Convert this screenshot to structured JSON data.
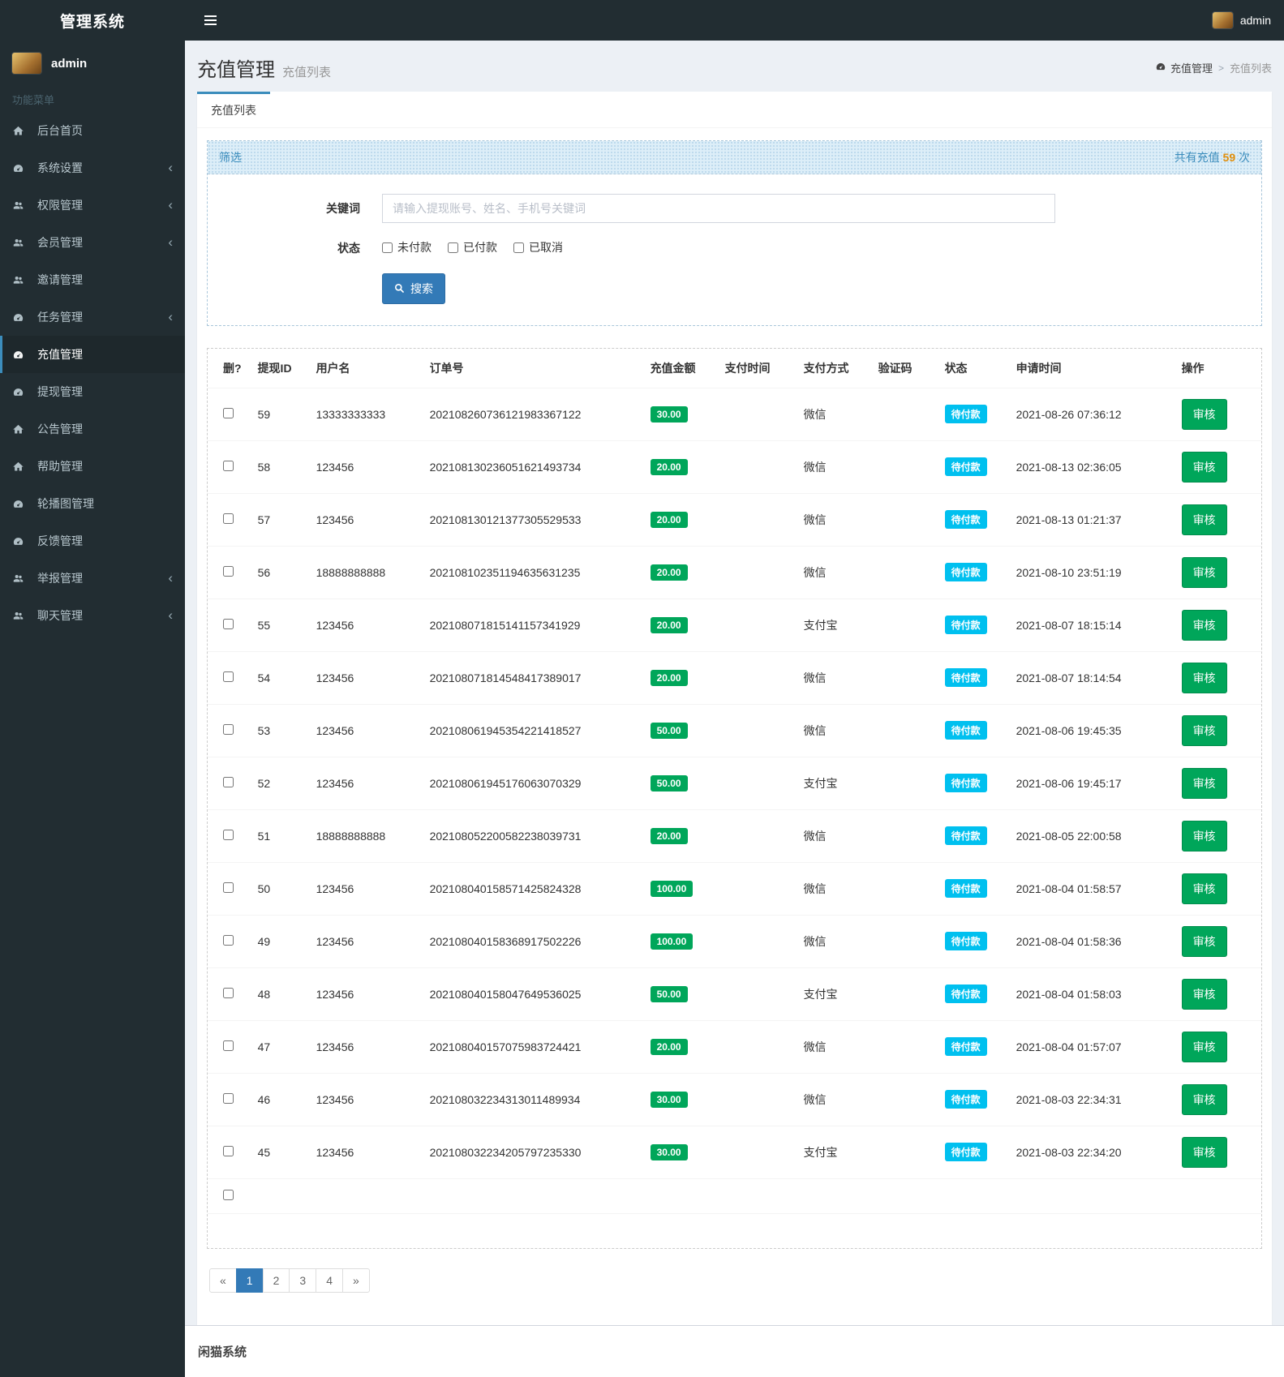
{
  "topbar": {
    "brand": "管理系统",
    "user": "admin"
  },
  "sidebar": {
    "user_name": "admin",
    "section_label": "功能菜单",
    "items": [
      {
        "label": "后台首页",
        "icon": "home",
        "expandable": false,
        "active": false
      },
      {
        "label": "系统设置",
        "icon": "dashboard",
        "expandable": true,
        "active": false
      },
      {
        "label": "权限管理",
        "icon": "users",
        "expandable": true,
        "active": false
      },
      {
        "label": "会员管理",
        "icon": "users",
        "expandable": true,
        "active": false
      },
      {
        "label": "邀请管理",
        "icon": "users",
        "expandable": false,
        "active": false
      },
      {
        "label": "任务管理",
        "icon": "dashboard",
        "expandable": true,
        "active": false
      },
      {
        "label": "充值管理",
        "icon": "dashboard",
        "expandable": false,
        "active": true
      },
      {
        "label": "提现管理",
        "icon": "dashboard",
        "expandable": false,
        "active": false
      },
      {
        "label": "公告管理",
        "icon": "home",
        "expandable": false,
        "active": false
      },
      {
        "label": "帮助管理",
        "icon": "home",
        "expandable": false,
        "active": false
      },
      {
        "label": "轮播图管理",
        "icon": "dashboard",
        "expandable": false,
        "active": false
      },
      {
        "label": "反馈管理",
        "icon": "dashboard",
        "expandable": false,
        "active": false
      },
      {
        "label": "举报管理",
        "icon": "users",
        "expandable": true,
        "active": false
      },
      {
        "label": "聊天管理",
        "icon": "users",
        "expandable": true,
        "active": false
      }
    ]
  },
  "page": {
    "title": "充值管理",
    "subtitle": "充值列表",
    "tab": "充值列表",
    "breadcrumb": {
      "root": "充值管理",
      "current": "充值列表"
    }
  },
  "filter": {
    "panel_title": "筛选",
    "total_prefix": "共有充值 ",
    "total_count": "59",
    "total_suffix": " 次",
    "keyword_label": "关键词",
    "keyword_placeholder": "请输入提现账号、姓名、手机号关键词",
    "keyword_value": "",
    "status_label": "状态",
    "status_options": [
      "未付款",
      "已付款",
      "已取消"
    ],
    "search_label": "搜索"
  },
  "table": {
    "columns": [
      "删?",
      "提现ID",
      "用户名",
      "订单号",
      "充值金额",
      "支付时间",
      "支付方式",
      "验证码",
      "状态",
      "申请时间",
      "操作"
    ],
    "action_label": "审核",
    "trailing_empty_row": true,
    "rows": [
      {
        "id": "59",
        "username": "13333333333",
        "order_no": "202108260736121983367122",
        "amount": "30.00",
        "pay_time": "",
        "pay_method": "微信",
        "verify_code": "",
        "status": "待付款",
        "apply_time": "2021-08-26 07:36:12"
      },
      {
        "id": "58",
        "username": "123456",
        "order_no": "202108130236051621493734",
        "amount": "20.00",
        "pay_time": "",
        "pay_method": "微信",
        "verify_code": "",
        "status": "待付款",
        "apply_time": "2021-08-13 02:36:05"
      },
      {
        "id": "57",
        "username": "123456",
        "order_no": "202108130121377305529533",
        "amount": "20.00",
        "pay_time": "",
        "pay_method": "微信",
        "verify_code": "",
        "status": "待付款",
        "apply_time": "2021-08-13 01:21:37"
      },
      {
        "id": "56",
        "username": "18888888888",
        "order_no": "202108102351194635631235",
        "amount": "20.00",
        "pay_time": "",
        "pay_method": "微信",
        "verify_code": "",
        "status": "待付款",
        "apply_time": "2021-08-10 23:51:19"
      },
      {
        "id": "55",
        "username": "123456",
        "order_no": "202108071815141157341929",
        "amount": "20.00",
        "pay_time": "",
        "pay_method": "支付宝",
        "verify_code": "",
        "status": "待付款",
        "apply_time": "2021-08-07 18:15:14"
      },
      {
        "id": "54",
        "username": "123456",
        "order_no": "202108071814548417389017",
        "amount": "20.00",
        "pay_time": "",
        "pay_method": "微信",
        "verify_code": "",
        "status": "待付款",
        "apply_time": "2021-08-07 18:14:54"
      },
      {
        "id": "53",
        "username": "123456",
        "order_no": "202108061945354221418527",
        "amount": "50.00",
        "pay_time": "",
        "pay_method": "微信",
        "verify_code": "",
        "status": "待付款",
        "apply_time": "2021-08-06 19:45:35"
      },
      {
        "id": "52",
        "username": "123456",
        "order_no": "202108061945176063070329",
        "amount": "50.00",
        "pay_time": "",
        "pay_method": "支付宝",
        "verify_code": "",
        "status": "待付款",
        "apply_time": "2021-08-06 19:45:17"
      },
      {
        "id": "51",
        "username": "18888888888",
        "order_no": "202108052200582238039731",
        "amount": "20.00",
        "pay_time": "",
        "pay_method": "微信",
        "verify_code": "",
        "status": "待付款",
        "apply_time": "2021-08-05 22:00:58"
      },
      {
        "id": "50",
        "username": "123456",
        "order_no": "202108040158571425824328",
        "amount": "100.00",
        "pay_time": "",
        "pay_method": "微信",
        "verify_code": "",
        "status": "待付款",
        "apply_time": "2021-08-04 01:58:57"
      },
      {
        "id": "49",
        "username": "123456",
        "order_no": "202108040158368917502226",
        "amount": "100.00",
        "pay_time": "",
        "pay_method": "微信",
        "verify_code": "",
        "status": "待付款",
        "apply_time": "2021-08-04 01:58:36"
      },
      {
        "id": "48",
        "username": "123456",
        "order_no": "202108040158047649536025",
        "amount": "50.00",
        "pay_time": "",
        "pay_method": "支付宝",
        "verify_code": "",
        "status": "待付款",
        "apply_time": "2021-08-04 01:58:03"
      },
      {
        "id": "47",
        "username": "123456",
        "order_no": "202108040157075983724421",
        "amount": "20.00",
        "pay_time": "",
        "pay_method": "微信",
        "verify_code": "",
        "status": "待付款",
        "apply_time": "2021-08-04 01:57:07"
      },
      {
        "id": "46",
        "username": "123456",
        "order_no": "202108032234313011489934",
        "amount": "30.00",
        "pay_time": "",
        "pay_method": "微信",
        "verify_code": "",
        "status": "待付款",
        "apply_time": "2021-08-03 22:34:31"
      },
      {
        "id": "45",
        "username": "123456",
        "order_no": "202108032234205797235330",
        "amount": "30.00",
        "pay_time": "",
        "pay_method": "支付宝",
        "verify_code": "",
        "status": "待付款",
        "apply_time": "2021-08-03 22:34:20"
      }
    ]
  },
  "pagination": {
    "items": [
      {
        "label": "«",
        "active": false
      },
      {
        "label": "1",
        "active": true
      },
      {
        "label": "2",
        "active": false
      },
      {
        "label": "3",
        "active": false
      },
      {
        "label": "4",
        "active": false
      },
      {
        "label": "»",
        "active": false
      }
    ]
  },
  "footer": {
    "text": "闲猫系统"
  },
  "colors": {
    "accent": "#3c8dbc",
    "green": "#00a65a",
    "cyan": "#00c0ef",
    "orange": "#e08e0b",
    "dark": "#222d32"
  }
}
